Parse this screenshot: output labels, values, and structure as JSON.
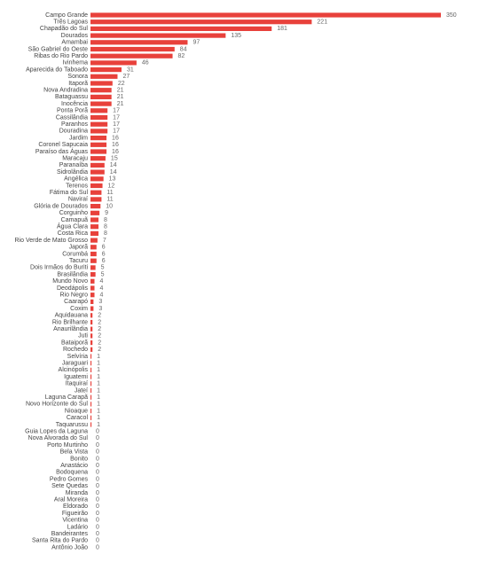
{
  "chart_data": {
    "type": "bar",
    "orientation": "horizontal",
    "color": "#e8413b",
    "categories": [
      "Campo Grande",
      "Três Lagoas",
      "Chapadão do Sul",
      "Dourados",
      "Amambai",
      "São Gabriel do Oeste",
      "Ribas do Rio Pardo",
      "Ivinhema",
      "Aparecida do Taboado",
      "Sonora",
      "Itaporã",
      "Nova Andradina",
      "Bataguassu",
      "Inocência",
      "Ponta Porã",
      "Cassilândia",
      "Paranhos",
      "Douradina",
      "Jardim",
      "Coronel Sapucaia",
      "Paraíso das Águas",
      "Maracaju",
      "Paranaíba",
      "Sidrolândia",
      "Angélica",
      "Terenos",
      "Fátima do Sul",
      "Naviraí",
      "Glória de Dourados",
      "Corguinho",
      "Camapuã",
      "Água Clara",
      "Costa Rica",
      "Rio Verde de Mato Grosso",
      "Japorã",
      "Corumbá",
      "Tacuru",
      "Dois Irmãos do Buriti",
      "Brasilândia",
      "Mundo Novo",
      "Deodápolis",
      "Rio Negro",
      "Caarapó",
      "Coxim",
      "Aquidauana",
      "Rio Brilhante",
      "Anaurilândia",
      "Juti",
      "Bataiporã",
      "Rochedo",
      "Selvíria",
      "Jaraguari",
      "Alcinópolis",
      "Iguatemi",
      "Itaquiraí",
      "Jateí",
      "Laguna Carapã",
      "Novo Horizonte do Sul",
      "Nioaque",
      "Caracol",
      "Taquarussu",
      "Guia Lopes da Laguna",
      "Nova Alvorada do Sul",
      "Porto Murtinho",
      "Bela Vista",
      "Bonito",
      "Anastácio",
      "Bodoquena",
      "Pedro Gomes",
      "Sete Quedas",
      "Miranda",
      "Aral Moreira",
      "Eldorado",
      "Figueirão",
      "Vicentina",
      "Ladário",
      "Bandeirantes",
      "Santa Rita do Pardo",
      "Antônio João"
    ],
    "values": [
      350,
      221,
      181,
      135,
      97,
      84,
      82,
      46,
      31,
      27,
      22,
      21,
      21,
      21,
      17,
      17,
      17,
      17,
      16,
      16,
      16,
      15,
      14,
      14,
      13,
      12,
      11,
      11,
      10,
      9,
      8,
      8,
      8,
      7,
      6,
      6,
      6,
      5,
      5,
      4,
      4,
      4,
      3,
      3,
      2,
      2,
      2,
      2,
      2,
      2,
      1,
      1,
      1,
      1,
      1,
      1,
      1,
      1,
      1,
      1,
      1,
      0,
      0,
      0,
      0,
      0,
      0,
      0,
      0,
      0,
      0,
      0,
      0,
      0,
      0,
      0,
      0,
      0,
      0
    ]
  }
}
